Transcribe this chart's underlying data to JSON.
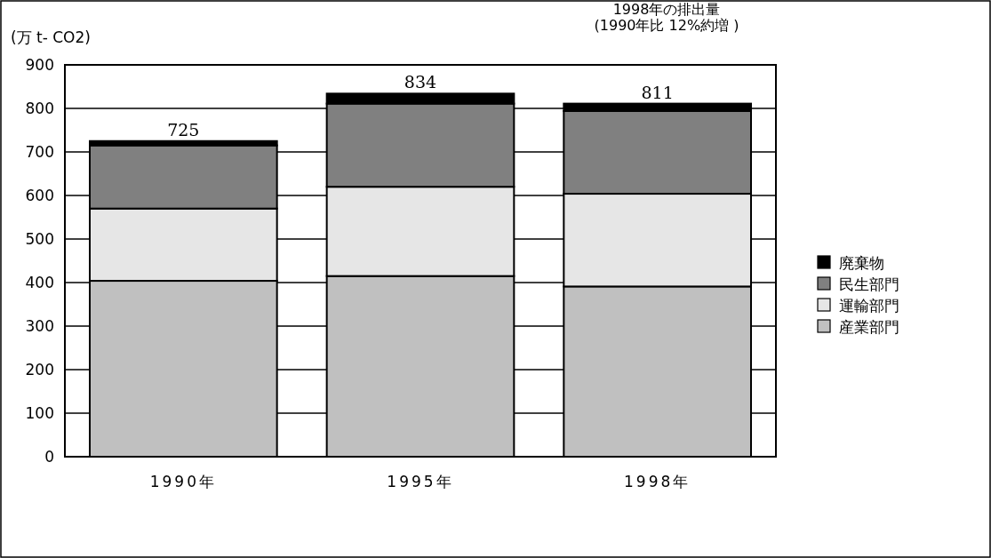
{
  "chart_data": {
    "type": "bar",
    "stacked": true,
    "ylabel": "(万 t- CO2)",
    "annotations": [
      "1998年の排出量\n(1990年比 12%約増 )"
    ],
    "categories": [
      "1990年",
      "1995年",
      "1998年"
    ],
    "series": [
      {
        "name": "産業部門",
        "color": "#c0c0c0",
        "values": [
          404,
          415,
          391
        ]
      },
      {
        "name": "運輸部門",
        "color": "#e6e6e6",
        "values": [
          166,
          205,
          213
        ]
      },
      {
        "name": "民生部門",
        "color": "#808080",
        "values": [
          145,
          191,
          190
        ]
      },
      {
        "name": "廃棄物",
        "color": "#000000",
        "values": [
          10,
          23,
          17
        ]
      }
    ],
    "totals": [
      "725",
      "834",
      "811"
    ],
    "ylim": [
      0,
      900
    ],
    "yticks": [
      0,
      100,
      200,
      300,
      400,
      500,
      600,
      700,
      800,
      900
    ],
    "grid": "y",
    "legend": "right"
  }
}
